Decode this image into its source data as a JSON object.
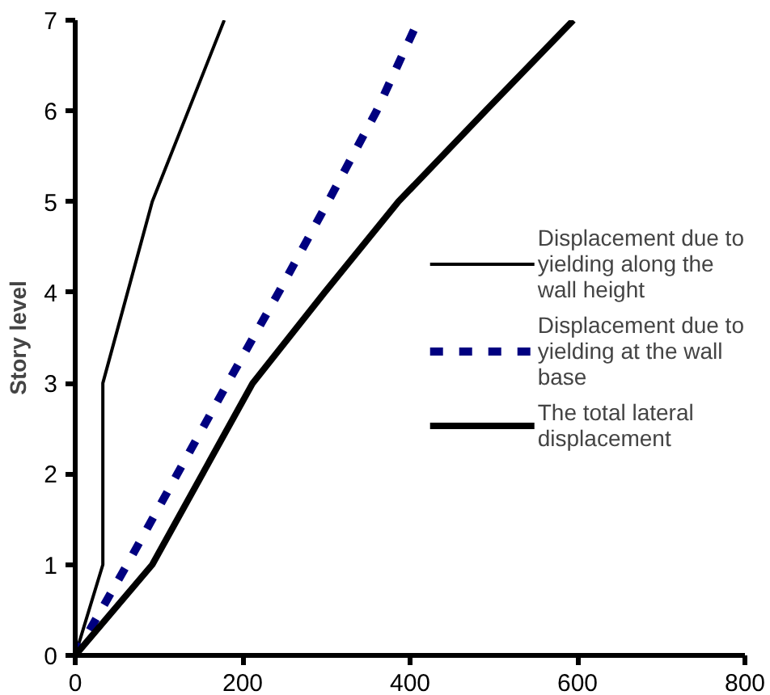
{
  "chart_data": {
    "type": "line",
    "ylabel": "Story level",
    "xlim": [
      0,
      800
    ],
    "xticks": [
      0,
      200,
      400,
      600,
      800
    ],
    "ylim": [
      0,
      7
    ],
    "yticks": [
      0,
      1,
      2,
      3,
      4,
      5,
      6,
      7
    ],
    "grid": false,
    "legend": "right",
    "marker": "none",
    "series": [
      {
        "name": "Displacement due to yielding along the wall height",
        "color": "#000000",
        "line_style": "solid",
        "x": [
          0,
          33,
          33,
          92,
          178
        ],
        "values": [
          0,
          1,
          3,
          5,
          7
        ]
      },
      {
        "name": "Displacement due to yielding at the wall base",
        "color": "#000080",
        "line_style": "dashed",
        "x": [
          0,
          62,
          122,
          182,
          243,
          302,
          360,
          410
        ],
        "values": [
          0,
          1,
          2,
          3,
          4,
          5,
          6,
          7
        ]
      },
      {
        "name": "The total lateral displacement",
        "color": "#000000",
        "line_style": "solid",
        "x": [
          0,
          92,
          212,
          298,
          386,
          490,
          595
        ],
        "values": [
          0,
          1,
          3,
          4,
          5,
          6,
          7
        ]
      }
    ]
  }
}
